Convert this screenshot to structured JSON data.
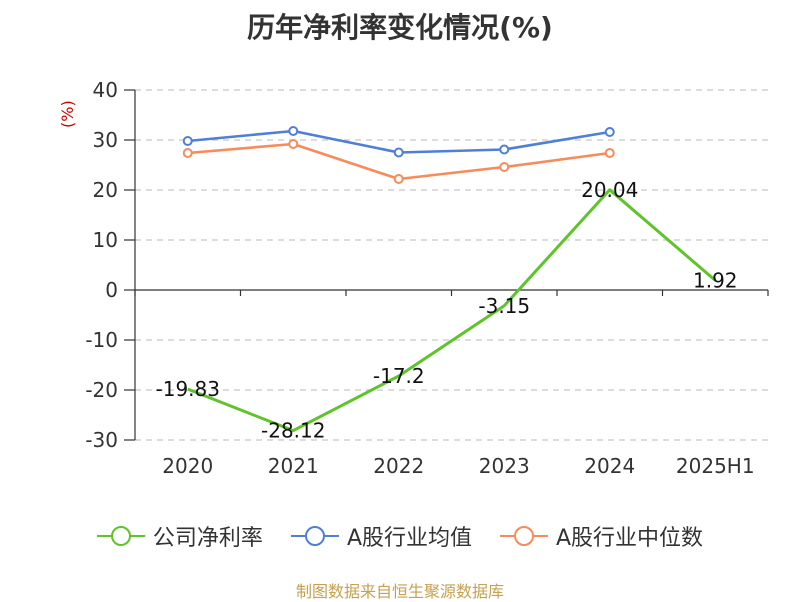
{
  "title": "历年净利率变化情况(%)",
  "unit_label": "(%)",
  "source": "制图数据来自恒生聚源数据库",
  "colors": {
    "net_margin": "#5fc32a",
    "industry_avg": "#4f7fd6",
    "industry_median": "#f58c5a",
    "grid": "#c8c8c8",
    "axis": "#333333",
    "text": "#333333"
  },
  "chart_data": {
    "type": "line",
    "categories": [
      "2020",
      "2021",
      "2022",
      "2023",
      "2024",
      "2025H1"
    ],
    "ylim": [
      -30,
      40
    ],
    "yticks": [
      -30,
      -20,
      -10,
      0,
      10,
      20,
      30,
      40
    ],
    "ylabel": "(%)",
    "xlabel": "",
    "grid": true,
    "legend_position": "bottom",
    "series": [
      {
        "name": "公司净利率",
        "key": "net_margin",
        "values": [
          -19.83,
          -28.12,
          -17.2,
          -3.15,
          20.04,
          1.92
        ],
        "labels": [
          "-19.83",
          "-28.12",
          "-17.2",
          "-3.15",
          "20.04",
          "1.92"
        ]
      },
      {
        "name": "A股行业均值",
        "key": "industry_avg",
        "values": [
          29.8,
          31.8,
          27.5,
          28.1,
          31.6,
          null
        ]
      },
      {
        "name": "A股行业中位数",
        "key": "industry_median",
        "values": [
          27.4,
          29.2,
          22.2,
          24.6,
          27.4,
          null
        ]
      }
    ]
  }
}
